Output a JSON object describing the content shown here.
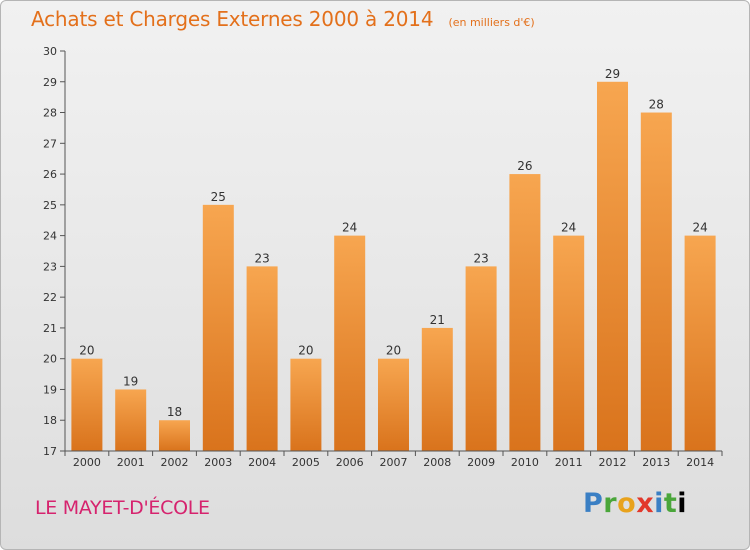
{
  "header": {
    "title": "Achats et Charges Externes 2000 à 2014",
    "unit": "(en milliers d'€)"
  },
  "footer": {
    "commune": "LE MAYET-D'ÉCOLE",
    "brand": "Proxiti"
  },
  "colors": {
    "bar_light": "#f7a650",
    "bar_dark": "#d9731c",
    "title": "#e3701b",
    "commune": "#d6236e"
  },
  "chart_data": {
    "type": "bar",
    "title": "Achats et Charges Externes 2000 à 2014",
    "subtitle": "(en milliers d'€)",
    "categories": [
      "2000",
      "2001",
      "2002",
      "2003",
      "2004",
      "2005",
      "2006",
      "2007",
      "2008",
      "2009",
      "2010",
      "2011",
      "2012",
      "2013",
      "2014"
    ],
    "values": [
      20,
      19,
      18,
      25,
      23,
      20,
      24,
      20,
      21,
      23,
      26,
      24,
      29,
      28,
      24
    ],
    "ylim": [
      17,
      30
    ],
    "yticks": [
      17,
      18,
      19,
      20,
      21,
      22,
      23,
      24,
      25,
      26,
      27,
      28,
      29,
      30
    ],
    "grid": false,
    "legend": "none",
    "data_labels": true
  }
}
